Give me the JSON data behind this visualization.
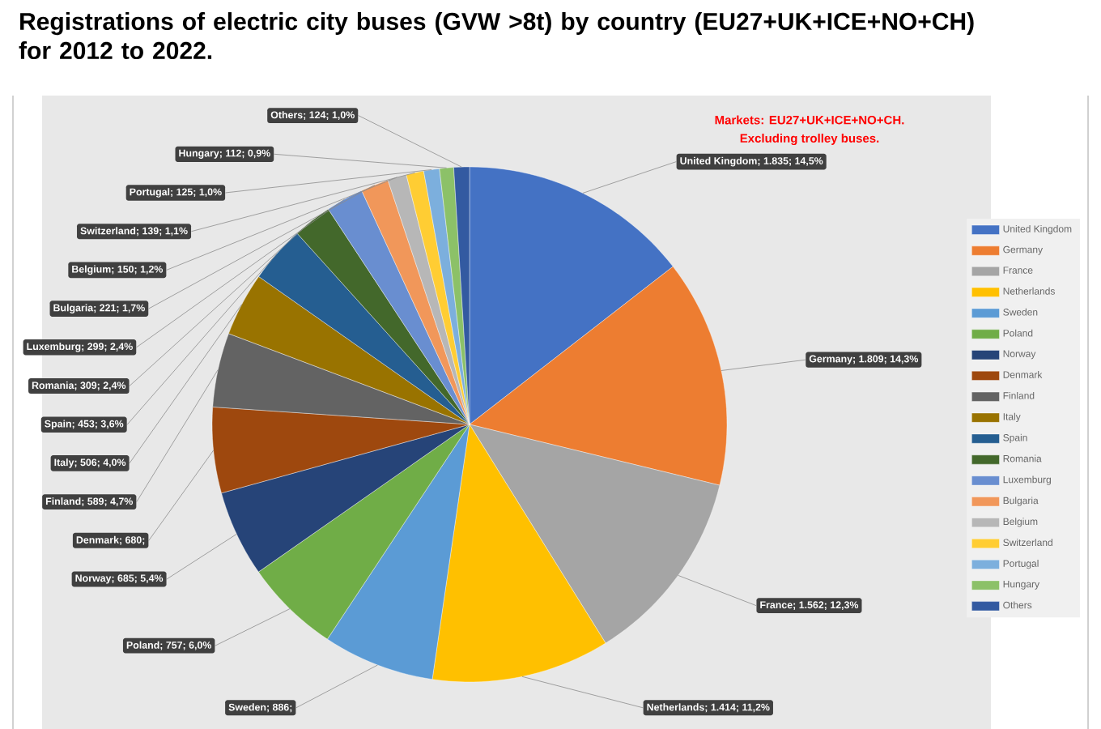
{
  "chart_data": {
    "type": "pie",
    "title": "Registrations of electric city buses (GVW >8t) by country (EU27+UK+ICE+NO+CH) for 2012 to 2022.",
    "categories": [
      "United Kingdom",
      "Germany",
      "France",
      "Netherlands",
      "Sweden",
      "Poland",
      "Norway",
      "Denmark",
      "Finland",
      "Italy",
      "Spain",
      "Romania",
      "Luxemburg",
      "Bulgaria",
      "Belgium",
      "Switzerland",
      "Portugal",
      "Hungary",
      "Others"
    ],
    "values": [
      1835,
      1809,
      1562,
      1414,
      886,
      757,
      685,
      680,
      589,
      506,
      453,
      309,
      299,
      221,
      150,
      139,
      125,
      112,
      124
    ],
    "colors": [
      "#4472c4",
      "#ed7d31",
      "#a5a5a5",
      "#ffc000",
      "#5b9bd5",
      "#70ad47",
      "#264478",
      "#9e480e",
      "#636363",
      "#997300",
      "#255e91",
      "#43682b",
      "#698ed0",
      "#f1975a",
      "#b7b7b7",
      "#ffcd33",
      "#7cafdd",
      "#8cc168",
      "#335aa1"
    ],
    "value_labels": [
      "United Kingdom; 1.835; 14,5%",
      "Germany; 1.809; 14,3%",
      "France; 1.562; 12,3%",
      "Netherlands; 1.414; 11,2%",
      "Sweden; 886;",
      "Poland; 757; 6,0%",
      "Norway; 685; 5,4%",
      "Denmark; 680;",
      "Finland; 589; 4,7%",
      "Italy; 506; 4,0%",
      "Spain; 453; 3,6%",
      "Romania; 309; 2,4%",
      "Luxemburg; 299; 2,4%",
      "Bulgaria; 221; 1,7%",
      "Belgium; 150; 1,2%",
      "Switzerland; 139; 1,1%",
      "Portugal; 125; 1,0%",
      "Hungary; 112; 0,9%",
      "Others; 124; 1,0%"
    ],
    "legend": "right",
    "annotations": [
      "Markets: EU27+UK+ICE+NO+CH.",
      "Excluding trolley buses."
    ]
  }
}
